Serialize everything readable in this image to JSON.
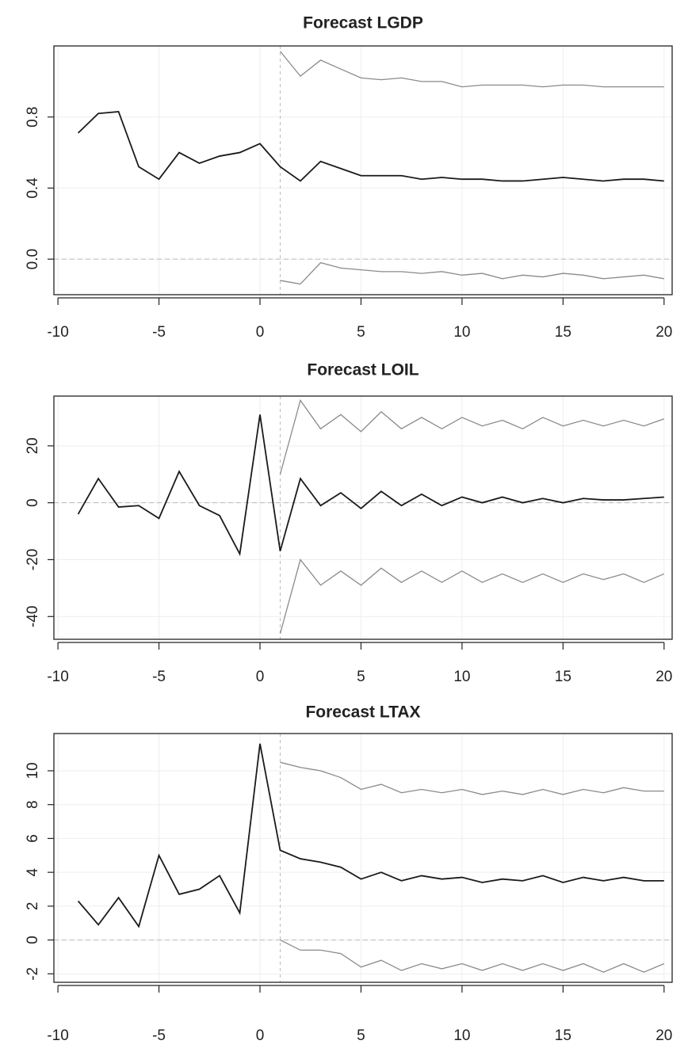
{
  "chart_data": [
    {
      "type": "line",
      "title": "Forecast LGDP",
      "x": [
        -9,
        -8,
        -7,
        -6,
        -5,
        -4,
        -3,
        -2,
        -1,
        0,
        1,
        2,
        3,
        4,
        5,
        6,
        7,
        8,
        9,
        10,
        11,
        12,
        13,
        14,
        15,
        16,
        17,
        18,
        19,
        20
      ],
      "series": [
        {
          "color": "#1a1a1a",
          "values": [
            0.71,
            0.82,
            0.83,
            0.52,
            0.45,
            0.6,
            0.54,
            0.58,
            0.6,
            0.65,
            0.52,
            0.44,
            0.55,
            0.51,
            0.47,
            0.47,
            0.47,
            0.45,
            0.46,
            0.45,
            0.45,
            0.44,
            0.44,
            0.45,
            0.46,
            0.45,
            0.44,
            0.45,
            0.45,
            0.44
          ]
        },
        {
          "color": "#8a8a8a",
          "values": [
            null,
            null,
            null,
            null,
            null,
            null,
            null,
            null,
            null,
            null,
            1.17,
            1.03,
            1.12,
            1.07,
            1.02,
            1.01,
            1.02,
            1.0,
            1.0,
            0.97,
            0.98,
            0.98,
            0.98,
            0.97,
            0.98,
            0.98,
            0.97,
            0.97,
            0.97,
            0.97
          ]
        },
        {
          "color": "#8a8a8a",
          "values": [
            null,
            null,
            null,
            null,
            null,
            null,
            null,
            null,
            null,
            null,
            -0.12,
            -0.14,
            -0.02,
            -0.05,
            -0.06,
            -0.07,
            -0.07,
            -0.08,
            -0.07,
            -0.09,
            -0.08,
            -0.11,
            -0.09,
            -0.1,
            -0.08,
            -0.09,
            -0.11,
            -0.1,
            -0.09,
            -0.11
          ]
        }
      ],
      "xlim": [
        -10.2,
        20.4
      ],
      "xticks": [
        -10,
        -5,
        0,
        5,
        10,
        15,
        20
      ],
      "ylim": [
        -0.2,
        1.2
      ],
      "yticks": [
        {
          "value": 0,
          "label": "0.0"
        },
        0.4,
        0.8
      ],
      "hline": 0,
      "grid": true
    },
    {
      "type": "line",
      "title": "Forecast LOIL",
      "x": [
        -9,
        -8,
        -7,
        -6,
        -5,
        -4,
        -3,
        -2,
        -1,
        0,
        1,
        2,
        3,
        4,
        5,
        6,
        7,
        8,
        9,
        10,
        11,
        12,
        13,
        14,
        15,
        16,
        17,
        18,
        19,
        20
      ],
      "series": [
        {
          "color": "#1a1a1a",
          "values": [
            -4,
            8.5,
            -1.5,
            -1,
            -5.5,
            11,
            -1,
            -4.5,
            -18,
            31,
            -17,
            8.5,
            -1,
            3.5,
            -2,
            4,
            -1,
            3,
            -1,
            2,
            0,
            2,
            0,
            1.5,
            0,
            1.5,
            1,
            1,
            1.5,
            2
          ]
        },
        {
          "color": "#8a8a8a",
          "values": [
            null,
            null,
            null,
            null,
            null,
            null,
            null,
            null,
            null,
            null,
            10,
            36,
            26,
            31,
            25,
            32,
            26,
            30,
            26,
            30,
            27,
            29,
            26,
            30,
            27,
            29,
            27,
            29,
            27,
            29.5
          ]
        },
        {
          "color": "#8a8a8a",
          "values": [
            null,
            null,
            null,
            null,
            null,
            null,
            null,
            null,
            null,
            null,
            -46,
            -20,
            -29,
            -24,
            -29,
            -23,
            -28,
            -24,
            -28,
            -24,
            -28,
            -25,
            -28,
            -25,
            -28,
            -25,
            -27,
            -25,
            -28,
            -25
          ]
        }
      ],
      "xlim": [
        -10.2,
        20.4
      ],
      "xticks": [
        -10,
        -5,
        0,
        5,
        10,
        15,
        20
      ],
      "ylim": [
        -48,
        37.5
      ],
      "yticks": [
        -40,
        -20,
        0,
        20
      ],
      "hline": 0,
      "grid": true
    },
    {
      "type": "line",
      "title": "Forecast LTAX",
      "x": [
        -9,
        -8,
        -7,
        -6,
        -5,
        -4,
        -3,
        -2,
        -1,
        0,
        1,
        2,
        3,
        4,
        5,
        6,
        7,
        8,
        9,
        10,
        11,
        12,
        13,
        14,
        15,
        16,
        17,
        18,
        19,
        20
      ],
      "series": [
        {
          "color": "#1a1a1a",
          "values": [
            2.3,
            0.9,
            2.5,
            0.8,
            5.0,
            2.7,
            3.0,
            3.8,
            1.6,
            11.6,
            5.3,
            4.8,
            4.6,
            4.3,
            3.6,
            4.0,
            3.5,
            3.8,
            3.6,
            3.7,
            3.4,
            3.6,
            3.5,
            3.8,
            3.4,
            3.7,
            3.5,
            3.7,
            3.5,
            3.5
          ]
        },
        {
          "color": "#8a8a8a",
          "values": [
            null,
            null,
            null,
            null,
            null,
            null,
            null,
            null,
            null,
            null,
            10.5,
            10.2,
            10.0,
            9.6,
            8.9,
            9.2,
            8.7,
            8.9,
            8.7,
            8.9,
            8.6,
            8.8,
            8.6,
            8.9,
            8.6,
            8.9,
            8.7,
            9.0,
            8.8,
            8.8
          ]
        },
        {
          "color": "#8a8a8a",
          "values": [
            null,
            null,
            null,
            null,
            null,
            null,
            null,
            null,
            null,
            null,
            0.0,
            -0.6,
            -0.6,
            -0.8,
            -1.6,
            -1.2,
            -1.8,
            -1.4,
            -1.7,
            -1.4,
            -1.8,
            -1.4,
            -1.8,
            -1.4,
            -1.8,
            -1.4,
            -1.9,
            -1.4,
            -1.9,
            -1.4
          ]
        }
      ],
      "xlim": [
        -10.2,
        20.4
      ],
      "xticks": [
        -10,
        -5,
        0,
        5,
        10,
        15,
        20
      ],
      "ylim": [
        -2.5,
        12.2
      ],
      "yticks": [
        -2,
        0,
        2,
        4,
        6,
        8,
        10
      ],
      "hline": 0,
      "grid": true
    }
  ]
}
